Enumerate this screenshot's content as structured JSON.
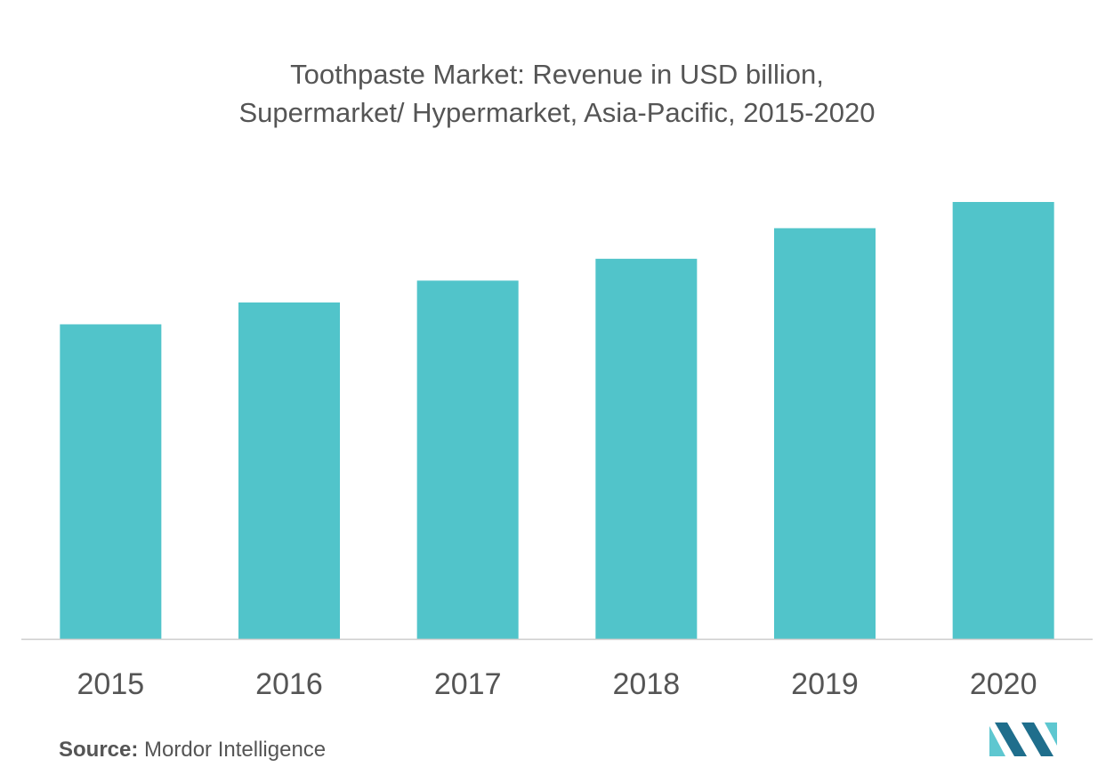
{
  "chart_data": {
    "type": "bar",
    "title_line1": "Toothpaste Market: Revenue in USD billion,",
    "title_line2": "Supermarket/ Hypermarket, Asia-Pacific, 2015-2020",
    "categories": [
      "2015",
      "2016",
      "2017",
      "2018",
      "2019",
      "2020"
    ],
    "values": [
      0.72,
      0.77,
      0.82,
      0.87,
      0.94,
      1.0
    ],
    "ylim": [
      0,
      1.0
    ],
    "y_axis_shown": false,
    "grid": false,
    "legend": "none",
    "bar_color": "#51c4ca",
    "axis_color": "#cccccc"
  },
  "source": {
    "label": "Source:",
    "text": "Mordor Intelligence"
  },
  "colors": {
    "text": "#555555",
    "logo_dark": "#1f6e8c",
    "logo_light": "#5ec7d0"
  }
}
